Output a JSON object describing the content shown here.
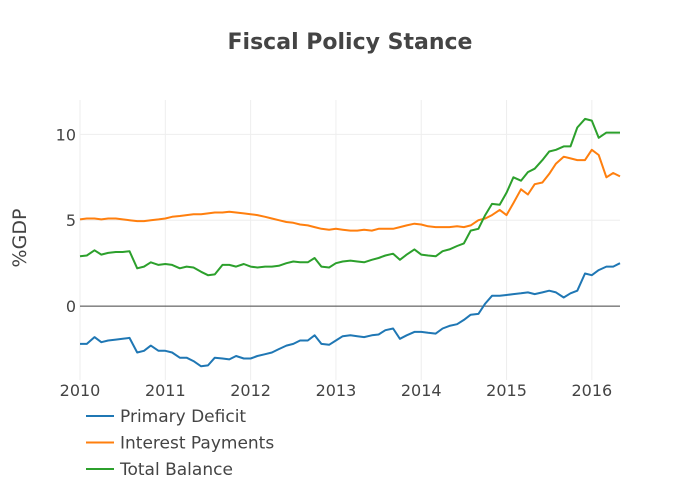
{
  "chart_data": {
    "type": "line",
    "title": "Fiscal Policy Stance",
    "xlabel": "",
    "ylabel": "%GDP",
    "xlim": [
      2010.0,
      2016.33
    ],
    "ylim": [
      -4.3,
      12.0
    ],
    "xticks": [
      2010,
      2011,
      2012,
      2013,
      2014,
      2015,
      2016
    ],
    "yticks": [
      0,
      5,
      10
    ],
    "grid": true,
    "legend": "bottom-left",
    "series": [
      {
        "name": "Primary Deficit",
        "color": "#1f77b4",
        "x": [
          2010.0,
          2010.08,
          2010.17,
          2010.25,
          2010.33,
          2010.42,
          2010.5,
          2010.58,
          2010.67,
          2010.75,
          2010.83,
          2010.92,
          2011.0,
          2011.08,
          2011.17,
          2011.25,
          2011.33,
          2011.42,
          2011.5,
          2011.58,
          2011.67,
          2011.75,
          2011.83,
          2011.92,
          2012.0,
          2012.08,
          2012.17,
          2012.25,
          2012.33,
          2012.42,
          2012.5,
          2012.58,
          2012.67,
          2012.75,
          2012.83,
          2012.92,
          2013.0,
          2013.08,
          2013.17,
          2013.25,
          2013.33,
          2013.42,
          2013.5,
          2013.58,
          2013.67,
          2013.75,
          2013.83,
          2013.92,
          2014.0,
          2014.08,
          2014.17,
          2014.25,
          2014.33,
          2014.42,
          2014.5,
          2014.58,
          2014.67,
          2014.75,
          2014.83,
          2014.92,
          2015.0,
          2015.08,
          2015.17,
          2015.25,
          2015.33,
          2015.42,
          2015.5,
          2015.58,
          2015.67,
          2015.75,
          2015.83,
          2015.92,
          2016.0,
          2016.08,
          2016.17,
          2016.25,
          2016.33
        ],
        "values": [
          -2.2,
          -2.2,
          -1.8,
          -2.1,
          -2.0,
          -1.95,
          -1.9,
          -1.85,
          -2.7,
          -2.6,
          -2.3,
          -2.6,
          -2.6,
          -2.7,
          -3.0,
          -3.0,
          -3.2,
          -3.5,
          -3.45,
          -3.0,
          -3.05,
          -3.1,
          -2.9,
          -3.05,
          -3.05,
          -2.9,
          -2.8,
          -2.7,
          -2.5,
          -2.3,
          -2.2,
          -2.0,
          -2.0,
          -1.7,
          -2.2,
          -2.25,
          -2.0,
          -1.75,
          -1.7,
          -1.75,
          -1.8,
          -1.7,
          -1.65,
          -1.4,
          -1.3,
          -1.9,
          -1.7,
          -1.5,
          -1.5,
          -1.55,
          -1.6,
          -1.3,
          -1.15,
          -1.05,
          -0.8,
          -0.5,
          -0.45,
          0.15,
          0.6,
          0.6,
          0.65,
          0.7,
          0.75,
          0.8,
          0.7,
          0.8,
          0.9,
          0.8,
          0.5,
          0.75,
          0.9,
          1.9,
          1.8,
          2.1,
          2.3,
          2.3,
          2.5
        ]
      },
      {
        "name": "Interest Payments",
        "color": "#ff7f0e",
        "x": [
          2010.0,
          2010.08,
          2010.17,
          2010.25,
          2010.33,
          2010.42,
          2010.5,
          2010.58,
          2010.67,
          2010.75,
          2010.83,
          2010.92,
          2011.0,
          2011.08,
          2011.17,
          2011.25,
          2011.33,
          2011.42,
          2011.5,
          2011.58,
          2011.67,
          2011.75,
          2011.83,
          2011.92,
          2012.0,
          2012.08,
          2012.17,
          2012.25,
          2012.33,
          2012.42,
          2012.5,
          2012.58,
          2012.67,
          2012.75,
          2012.83,
          2012.92,
          2013.0,
          2013.08,
          2013.17,
          2013.25,
          2013.33,
          2013.42,
          2013.5,
          2013.58,
          2013.67,
          2013.75,
          2013.83,
          2013.92,
          2014.0,
          2014.08,
          2014.17,
          2014.25,
          2014.33,
          2014.42,
          2014.5,
          2014.58,
          2014.67,
          2014.75,
          2014.83,
          2014.92,
          2015.0,
          2015.08,
          2015.17,
          2015.25,
          2015.33,
          2015.42,
          2015.5,
          2015.58,
          2015.67,
          2015.75,
          2015.83,
          2015.92,
          2016.0,
          2016.08,
          2016.17,
          2016.25,
          2016.33
        ],
        "values": [
          5.05,
          5.1,
          5.1,
          5.05,
          5.1,
          5.1,
          5.05,
          5.0,
          4.95,
          4.95,
          5.0,
          5.05,
          5.1,
          5.2,
          5.25,
          5.3,
          5.35,
          5.35,
          5.4,
          5.45,
          5.45,
          5.5,
          5.45,
          5.4,
          5.35,
          5.3,
          5.2,
          5.1,
          5.0,
          4.9,
          4.85,
          4.75,
          4.7,
          4.6,
          4.5,
          4.45,
          4.5,
          4.45,
          4.4,
          4.4,
          4.45,
          4.4,
          4.5,
          4.5,
          4.5,
          4.6,
          4.7,
          4.8,
          4.75,
          4.65,
          4.6,
          4.6,
          4.6,
          4.65,
          4.6,
          4.7,
          5.0,
          5.1,
          5.3,
          5.6,
          5.3,
          6.0,
          6.8,
          6.5,
          7.1,
          7.2,
          7.7,
          8.3,
          8.7,
          8.6,
          8.5,
          8.5,
          9.1,
          8.8,
          7.5,
          7.75,
          7.55
        ]
      },
      {
        "name": "Total Balance",
        "color": "#2ca02c",
        "x": [
          2010.0,
          2010.08,
          2010.17,
          2010.25,
          2010.33,
          2010.42,
          2010.5,
          2010.58,
          2010.67,
          2010.75,
          2010.83,
          2010.92,
          2011.0,
          2011.08,
          2011.17,
          2011.25,
          2011.33,
          2011.42,
          2011.5,
          2011.58,
          2011.67,
          2011.75,
          2011.83,
          2011.92,
          2012.0,
          2012.08,
          2012.17,
          2012.25,
          2012.33,
          2012.42,
          2012.5,
          2012.58,
          2012.67,
          2012.75,
          2012.83,
          2012.92,
          2013.0,
          2013.08,
          2013.17,
          2013.25,
          2013.33,
          2013.42,
          2013.5,
          2013.58,
          2013.67,
          2013.75,
          2013.83,
          2013.92,
          2014.0,
          2014.08,
          2014.17,
          2014.25,
          2014.33,
          2014.42,
          2014.5,
          2014.58,
          2014.67,
          2014.75,
          2014.83,
          2014.92,
          2015.0,
          2015.08,
          2015.17,
          2015.25,
          2015.33,
          2015.42,
          2015.5,
          2015.58,
          2015.67,
          2015.75,
          2015.83,
          2015.92,
          2016.0,
          2016.08,
          2016.17,
          2016.25,
          2016.33
        ],
        "values": [
          2.9,
          2.95,
          3.25,
          3.0,
          3.1,
          3.15,
          3.15,
          3.2,
          2.2,
          2.3,
          2.55,
          2.4,
          2.45,
          2.4,
          2.2,
          2.3,
          2.25,
          2.0,
          1.8,
          1.85,
          2.4,
          2.4,
          2.3,
          2.45,
          2.3,
          2.25,
          2.3,
          2.3,
          2.35,
          2.5,
          2.6,
          2.55,
          2.55,
          2.8,
          2.3,
          2.25,
          2.5,
          2.6,
          2.65,
          2.6,
          2.55,
          2.7,
          2.8,
          2.95,
          3.05,
          2.7,
          3.0,
          3.3,
          3.0,
          2.95,
          2.9,
          3.2,
          3.3,
          3.5,
          3.65,
          4.4,
          4.5,
          5.3,
          5.95,
          5.9,
          6.6,
          7.5,
          7.3,
          7.8,
          8.0,
          8.5,
          9.0,
          9.1,
          9.3,
          9.3,
          10.4,
          10.9,
          10.8,
          9.8,
          10.1,
          10.1,
          10.1
        ]
      }
    ]
  }
}
